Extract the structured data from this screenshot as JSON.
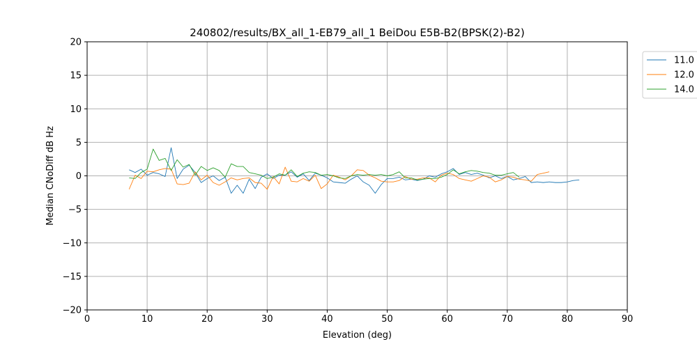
{
  "chart_data": {
    "type": "line",
    "title": "240802/results/BX_all_1-EB79_all_1 BeiDou E5B-B2(BPSK(2)-B2)",
    "xlabel": "Elevation (deg)",
    "ylabel": "Median CNoDiff dB Hz",
    "xlim": [
      0,
      90
    ],
    "ylim": [
      -20,
      20
    ],
    "xticks": [
      0,
      10,
      20,
      30,
      40,
      50,
      60,
      70,
      80,
      90
    ],
    "yticks": [
      -20,
      -15,
      -10,
      -5,
      0,
      5,
      10,
      15,
      20
    ],
    "grid": true,
    "legend_position": "outside-top-right",
    "series": [
      {
        "name": "11.0",
        "color": "#1f77b4",
        "x": [
          7,
          8,
          9,
          10,
          11,
          12,
          13,
          14,
          15,
          16,
          17,
          18,
          19,
          20,
          21,
          22,
          23,
          24,
          25,
          26,
          27,
          28,
          29,
          30,
          31,
          32,
          33,
          34,
          35,
          36,
          37,
          38,
          39,
          40,
          41,
          42,
          43,
          44,
          45,
          46,
          47,
          48,
          49,
          50,
          51,
          52,
          53,
          54,
          55,
          56,
          57,
          58,
          59,
          60,
          61,
          62,
          63,
          64,
          65,
          66,
          67,
          68,
          69,
          70,
          71,
          72,
          73,
          74,
          75,
          76,
          77,
          78,
          79,
          80,
          81,
          82
        ],
        "y": [
          0.9,
          0.5,
          1.0,
          0.1,
          0.5,
          0.3,
          -0.1,
          4.2,
          -0.4,
          1.0,
          1.6,
          0.5,
          -1.0,
          -0.4,
          0.0,
          -0.7,
          -0.2,
          -2.6,
          -1.4,
          -2.6,
          -0.5,
          -1.9,
          -0.2,
          0.3,
          -0.4,
          0.1,
          0.1,
          0.6,
          -0.2,
          0.3,
          -0.7,
          0.4,
          0.1,
          -0.3,
          -0.9,
          -1.0,
          -1.1,
          -0.5,
          0.0,
          -0.9,
          -1.4,
          -2.6,
          -1.3,
          -0.4,
          -0.4,
          -0.2,
          -0.6,
          -0.5,
          -0.7,
          -0.5,
          0.0,
          -0.2,
          0.3,
          0.6,
          1.1,
          0.2,
          0.5,
          0.2,
          0.4,
          0.1,
          -0.3,
          0.0,
          -0.4,
          -0.1,
          -0.6,
          -0.4,
          -0.1,
          -1.0,
          -0.9,
          -1.0,
          -0.9,
          -1.0,
          -1.0,
          -0.9,
          -0.7,
          -0.6
        ]
      },
      {
        "name": "12.0",
        "color": "#ff7f0e",
        "x": [
          7,
          8,
          9,
          10,
          11,
          12,
          13,
          14,
          15,
          16,
          17,
          18,
          19,
          20,
          21,
          22,
          23,
          24,
          25,
          26,
          27,
          28,
          29,
          30,
          31,
          32,
          33,
          34,
          35,
          36,
          37,
          38,
          39,
          40,
          41,
          42,
          43,
          44,
          45,
          46,
          47,
          48,
          49,
          50,
          51,
          52,
          53,
          54,
          55,
          56,
          57,
          58,
          59,
          60,
          61,
          62,
          63,
          64,
          65,
          66,
          67,
          68,
          69,
          70,
          71,
          72,
          73,
          74,
          75,
          76,
          77
        ],
        "y": [
          -2.0,
          0.1,
          -0.4,
          0.7,
          0.6,
          0.9,
          1.1,
          1.0,
          -1.2,
          -1.3,
          -1.1,
          0.6,
          -0.6,
          0.1,
          -1.0,
          -1.4,
          -0.9,
          -0.3,
          -0.6,
          -0.4,
          -0.3,
          -1.0,
          -1.1,
          -2.0,
          -0.1,
          -1.2,
          1.3,
          -0.8,
          -0.9,
          -0.4,
          -0.8,
          0.1,
          -1.9,
          -1.2,
          0.1,
          -0.2,
          -0.6,
          0.0,
          0.9,
          0.8,
          0.1,
          -0.3,
          -0.8,
          -0.9,
          -0.9,
          -0.7,
          -0.1,
          -0.5,
          -0.5,
          -0.3,
          -0.3,
          -0.9,
          0.1,
          0.4,
          0.2,
          -0.4,
          -0.6,
          -0.8,
          -0.4,
          0.0,
          -0.2,
          -0.9,
          -0.6,
          -0.1,
          -0.2,
          -0.5,
          -0.6,
          -0.8,
          0.2,
          0.4,
          0.6
        ]
      },
      {
        "name": "14.0",
        "color": "#2ca02c",
        "x": [
          7,
          8,
          9,
          10,
          11,
          12,
          13,
          14,
          15,
          16,
          17,
          18,
          19,
          20,
          21,
          22,
          23,
          24,
          25,
          26,
          27,
          28,
          29,
          30,
          31,
          32,
          33,
          34,
          35,
          36,
          37,
          38,
          39,
          40,
          41,
          42,
          43,
          44,
          45,
          46,
          47,
          48,
          49,
          50,
          51,
          52,
          53,
          54,
          55,
          56,
          57,
          58,
          59,
          60,
          61,
          62,
          63,
          64,
          65,
          66,
          67,
          68,
          69,
          70,
          71,
          72
        ],
        "y": [
          -0.3,
          -0.4,
          0.5,
          1.0,
          4.0,
          2.3,
          2.6,
          0.8,
          2.4,
          1.3,
          1.7,
          0.1,
          1.4,
          0.8,
          1.2,
          0.8,
          -0.2,
          1.8,
          1.4,
          1.4,
          0.5,
          0.3,
          0.1,
          -0.4,
          -0.2,
          0.3,
          0.1,
          0.9,
          -0.1,
          0.4,
          0.6,
          0.5,
          0.1,
          0.2,
          0.0,
          -0.3,
          -0.4,
          0.0,
          0.2,
          0.1,
          0.2,
          0.1,
          0.2,
          0.0,
          0.2,
          0.6,
          -0.3,
          -0.3,
          -0.6,
          -0.5,
          -0.4,
          -0.4,
          -0.2,
          0.2,
          0.9,
          0.3,
          0.6,
          0.8,
          0.7,
          0.5,
          0.4,
          0.1,
          0.1,
          0.3,
          0.5,
          -0.2
        ]
      }
    ]
  }
}
